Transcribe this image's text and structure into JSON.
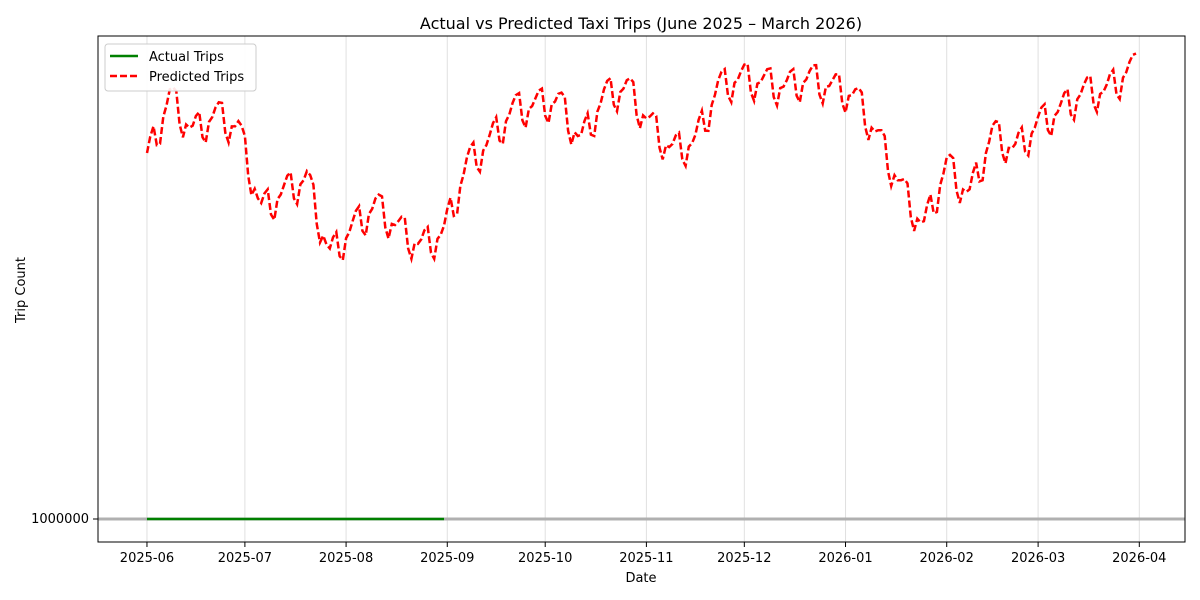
{
  "chart_data": {
    "type": "line",
    "title": "Actual vs Predicted Taxi Trips (June 2025 – March 2026)",
    "xlabel": "Date",
    "ylabel": "Trip Count",
    "x_ticks": [
      "2025-06",
      "2025-07",
      "2025-08",
      "2025-09",
      "2025-10",
      "2025-11",
      "2025-12",
      "2026-01",
      "2026-02",
      "2026-03",
      "2026-04"
    ],
    "y_tick_label": "1000000",
    "y_tick_label_overlap_note_free": "",
    "grid": "vertical",
    "legend_position": "top-left",
    "x_range": [
      "2025-05-17",
      "2026-04-15"
    ],
    "series": [
      {
        "name": "Actual Trips",
        "color": "#008000",
        "style": "solid",
        "x": [
          "2025-06-01",
          "2025-08-31"
        ],
        "y": [
          0,
          0
        ]
      },
      {
        "name": "Predicted Trips",
        "color": "#ff0000",
        "style": "dashed",
        "x_start": "2025-06-01",
        "x_end": "2026-03-31",
        "weekly_anchor_levels": [
          0.8,
          0.94,
          0.86,
          0.9,
          0.87,
          0.69,
          0.73,
          0.76,
          0.59,
          0.65,
          0.7,
          0.65,
          0.61,
          0.64,
          0.79,
          0.84,
          0.91,
          0.92,
          0.93,
          0.84,
          0.94,
          0.96,
          0.88,
          0.82,
          0.84,
          0.96,
          0.98,
          0.97,
          0.96,
          0.98,
          0.96,
          0.94,
          0.85,
          0.74,
          0.65,
          0.79,
          0.72,
          0.86,
          0.82,
          0.88,
          0.91,
          0.95,
          0.95,
          1.0
        ],
        "weekly_dip_depth": 0.07
      }
    ]
  }
}
